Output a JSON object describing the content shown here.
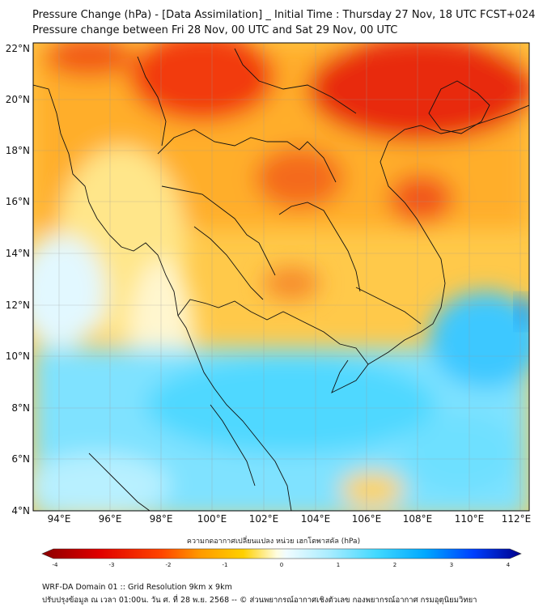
{
  "title": {
    "line1": "Pressure Change (hPa) - [Data Assimilation] _ Initial Time : Thursday 27 Nov, 18 UTC FCST+024",
    "line2": "Pressure change between Fri 28 Nov, 00 UTC and Sat 29 Nov, 00 UTC"
  },
  "axes": {
    "lat_labels": [
      "22°N",
      "20°N",
      "18°N",
      "16°N",
      "14°N",
      "12°N",
      "10°N",
      "8°N",
      "6°N",
      "4°N"
    ],
    "lon_labels": [
      "94°E",
      "96°E",
      "98°E",
      "100°E",
      "102°E",
      "104°E",
      "106°E",
      "108°E",
      "110°E",
      "112°E"
    ]
  },
  "colorbar": {
    "label": "ความกดอากาศเปลี่ยนแปลง หน่วย เฮกโตพาสคัล (hPa)",
    "ticks": [
      "-4",
      "-3",
      "-2",
      "-1",
      "0",
      "1",
      "2",
      "3",
      "4"
    ],
    "min_color": "#8b0000",
    "max_color": "#00008b"
  },
  "footer": {
    "line1": "WRF-DA Domain 01 :: Grid Resolution 9km x 9km",
    "line2": "ปรับปรุงข้อมูล ณ เวลา 01:00น. วัน ศ. ที่ 28 พ.ย. 2568 -- © ส่วนพยากรณ์อากาศเชิงตัวเลข กองพยากรณ์อากาศ กรมอุตุนิยมวิทยา"
  }
}
